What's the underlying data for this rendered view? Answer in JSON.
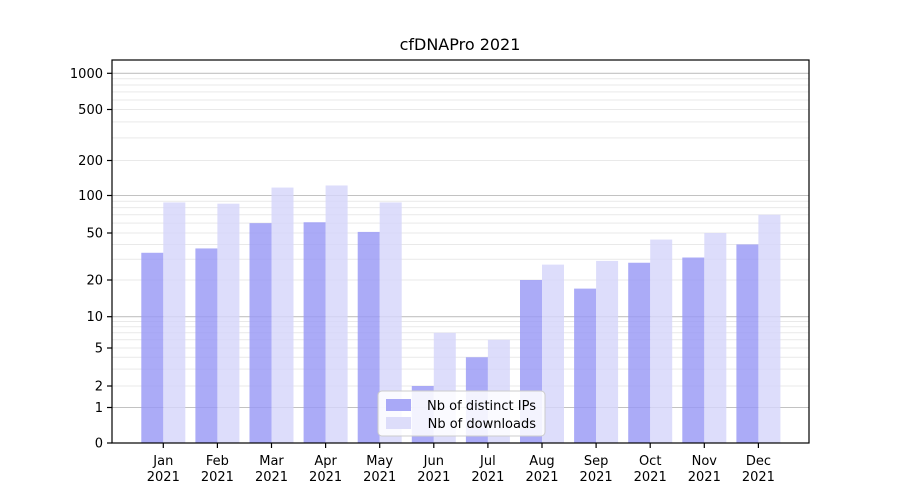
{
  "chart_data": {
    "type": "bar",
    "title": "cfDNAPro 2021",
    "categories": [
      "Jan",
      "Feb",
      "Mar",
      "Apr",
      "May",
      "Jun",
      "Jul",
      "Aug",
      "Sep",
      "Oct",
      "Nov",
      "Dec"
    ],
    "x_tick_year": "2021",
    "series": [
      {
        "name": "Nb of distinct IPs",
        "color": "#a9a9f7",
        "values": [
          34,
          37,
          60,
          61,
          51,
          2,
          4,
          20,
          17,
          28,
          31,
          40
        ]
      },
      {
        "name": "Nb of downloads",
        "color": "#ddddfa",
        "values": [
          88,
          86,
          117,
          122,
          88,
          7,
          6,
          27,
          29,
          44,
          50,
          70
        ]
      }
    ],
    "y_axis": {
      "scale": "symlog",
      "tick_labels": [
        0,
        1,
        2,
        5,
        10,
        20,
        50,
        100,
        200,
        500,
        1000
      ],
      "major_gridlines": [
        1,
        10,
        100,
        1000
      ],
      "minor_gridlines": [
        2,
        3,
        4,
        5,
        6,
        7,
        8,
        9,
        20,
        30,
        40,
        50,
        60,
        70,
        80,
        90,
        200,
        300,
        400,
        500,
        600,
        700,
        800,
        900
      ]
    },
    "grid": true,
    "legend_position": "inside-bottom-center",
    "colors": {
      "major_grid": "#c2c2c2",
      "minor_grid": "#e9e9e9",
      "frame": "#000000",
      "legend_border": "#cccccc"
    }
  }
}
